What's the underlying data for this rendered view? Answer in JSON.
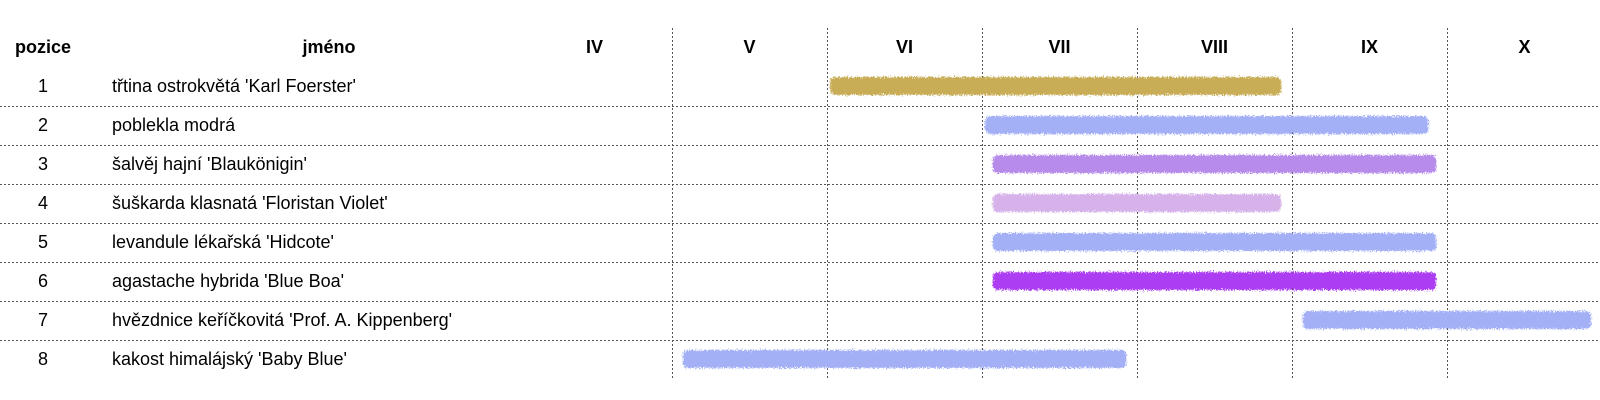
{
  "chart_data": {
    "type": "gantt",
    "columns": {
      "position": "pozice",
      "name": "jméno"
    },
    "months": [
      "IV",
      "V",
      "VI",
      "VII",
      "VIII",
      "IX",
      "X"
    ],
    "rows": [
      {
        "position": "1",
        "name": "třtina ostrokvětá 'Karl Foerster'",
        "start": 6.0,
        "end": 8.95,
        "color": "#c9ad57"
      },
      {
        "position": "2",
        "name": "poblekla modrá",
        "start": 7.0,
        "end": 9.9,
        "color": "#a3b0f5"
      },
      {
        "position": "3",
        "name": "šalvěj hajní 'Blaukönigin'",
        "start": 7.05,
        "end": 9.95,
        "color": "#b68bea"
      },
      {
        "position": "4",
        "name": "šuškarda klasnatá 'Floristan Violet'",
        "start": 7.05,
        "end": 8.95,
        "color": "#d7b1ea"
      },
      {
        "position": "5",
        "name": "levandule lékařská 'Hidcote'",
        "start": 7.05,
        "end": 9.95,
        "color": "#a3b0f5"
      },
      {
        "position": "6",
        "name": "agastache hybrida 'Blue Boa'",
        "start": 7.05,
        "end": 9.95,
        "color": "#ad3cf3"
      },
      {
        "position": "7",
        "name": "hvězdnice keříčkovitá 'Prof. A. Kippenberg'",
        "start": 9.05,
        "end": 10.95,
        "color": "#a3b0f5"
      },
      {
        "position": "8",
        "name": "kakost himalájský 'Baby Blue'",
        "start": 5.05,
        "end": 7.95,
        "color": "#a3b0f5"
      }
    ]
  }
}
